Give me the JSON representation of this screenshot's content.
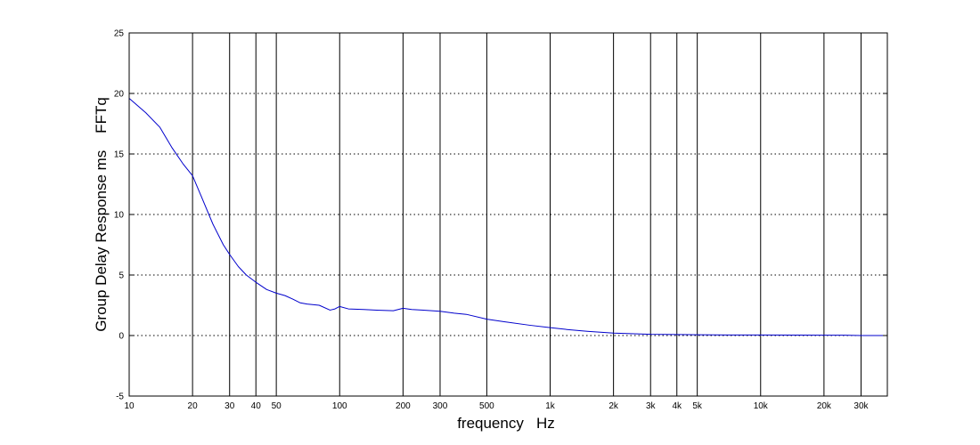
{
  "chart_data": {
    "type": "line",
    "title": "",
    "xlabel": "frequency   Hz",
    "ylabel": "Group Delay Response ms    FFTq",
    "x_scale": "log",
    "xlim": [
      10,
      40000
    ],
    "ylim": [
      -5,
      25
    ],
    "x_ticks": [
      10,
      20,
      30,
      40,
      50,
      100,
      200,
      300,
      500,
      1000,
      2000,
      3000,
      4000,
      5000,
      10000,
      20000,
      30000
    ],
    "x_tick_labels": [
      "10",
      "20",
      "30",
      "40",
      "50",
      "100",
      "200",
      "300",
      "500",
      "1k",
      "2k",
      "3k",
      "4k",
      "5k",
      "10k",
      "20k",
      "30k"
    ],
    "y_ticks": [
      -5,
      0,
      5,
      10,
      15,
      20,
      25
    ],
    "y_tick_labels": [
      "-5",
      "0",
      "5",
      "10",
      "15",
      "20",
      "25"
    ],
    "grid": {
      "x": "solid",
      "y": "dotted"
    },
    "colors": {
      "line": "#0000cc",
      "grid": "#000000",
      "axes": "#000000"
    },
    "series": [
      {
        "x": [
          10,
          12,
          14,
          16,
          18,
          20,
          22,
          25,
          28,
          30,
          33,
          36,
          40,
          45,
          50,
          55,
          60,
          65,
          70,
          80,
          90,
          95,
          100,
          110,
          130,
          150,
          180,
          200,
          220,
          250,
          300,
          350,
          400,
          500,
          600,
          800,
          1000,
          1200,
          1500,
          2000,
          2500,
          3000,
          4000,
          5000,
          7000,
          10000,
          15000,
          20000,
          25000,
          30000,
          40000
        ],
        "y": [
          19.6,
          18.4,
          17.2,
          15.5,
          14.2,
          13.2,
          11.5,
          9.2,
          7.5,
          6.7,
          5.7,
          5.0,
          4.4,
          3.8,
          3.5,
          3.3,
          3.0,
          2.7,
          2.6,
          2.5,
          2.1,
          2.2,
          2.4,
          2.2,
          2.15,
          2.1,
          2.05,
          2.25,
          2.15,
          2.1,
          2.0,
          1.85,
          1.75,
          1.35,
          1.15,
          0.85,
          0.65,
          0.5,
          0.35,
          0.2,
          0.15,
          0.1,
          0.08,
          0.06,
          0.05,
          0.05,
          0.04,
          0.03,
          0.03,
          0.0,
          0.0
        ]
      }
    ]
  }
}
